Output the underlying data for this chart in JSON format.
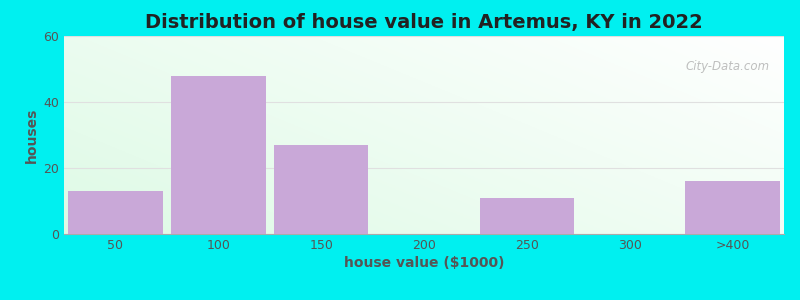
{
  "title": "Distribution of house value in Artemus, KY in 2022",
  "xlabel": "house value ($1000)",
  "ylabel": "houses",
  "categories": [
    "50",
    "100",
    "150",
    "200",
    "250",
    "300",
    ">400"
  ],
  "values": [
    13,
    48,
    27,
    0,
    11,
    0,
    16
  ],
  "bar_color": "#c9a8d8",
  "bar_edgecolor": "#c9a8d8",
  "ylim": [
    0,
    60
  ],
  "yticks": [
    0,
    20,
    40,
    60
  ],
  "figure_bg": "#00f0f0",
  "title_fontsize": 14,
  "axis_label_fontsize": 10,
  "tick_fontsize": 9,
  "watermark": "City-Data.com",
  "grid_color": "#e0e0e0",
  "bar_width": 0.92
}
